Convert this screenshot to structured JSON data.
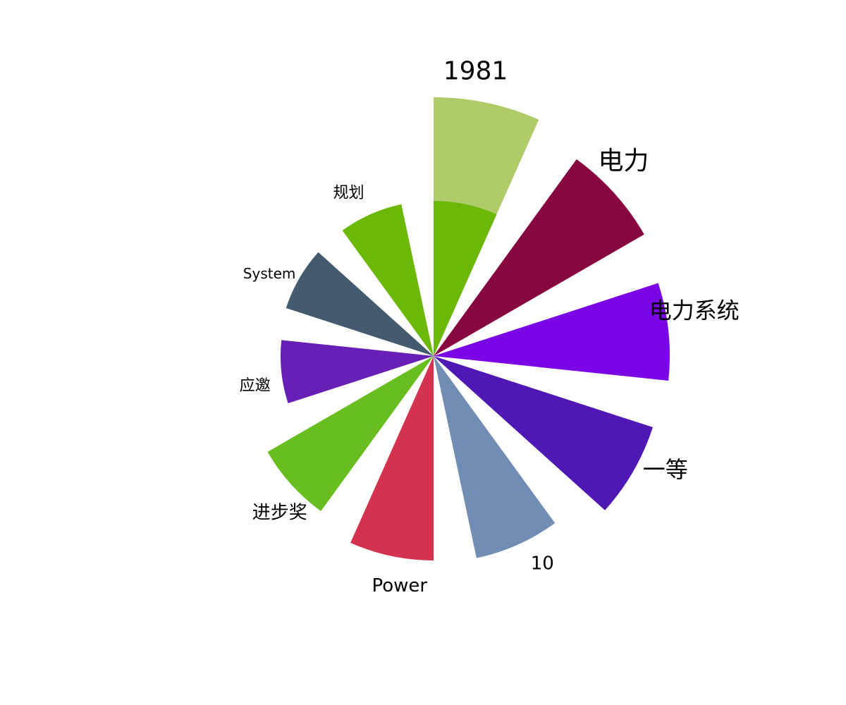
{
  "chart_data": {
    "type": "nightingale-rose",
    "title": "",
    "slices": [
      {
        "label": "1981",
        "value": 367,
        "color": "#b0cb69",
        "label_size": 36
      },
      {
        "label": "电力",
        "value": 345,
        "color": "#880640",
        "label_size": 36
      },
      {
        "label": "电力系统",
        "value": 335,
        "color": "#7a06e6",
        "label_size": 32
      },
      {
        "label": "一等",
        "value": 327,
        "color": "#4f18b5",
        "label_size": 32
      },
      {
        "label": "10",
        "value": 293,
        "color": "#728db3",
        "label_size": 26
      },
      {
        "label": "Power",
        "value": 290,
        "color": "#d3334f",
        "label_size": 26
      },
      {
        "label": "进步奖",
        "value": 272,
        "color": "#69be1f",
        "label_size": 26
      },
      {
        "label": "应邀",
        "value": 217,
        "color": "#681fb6",
        "label_size": 22
      },
      {
        "label": "System",
        "value": 220,
        "color": "#435a6f",
        "label_size": 20
      },
      {
        "label": "规划",
        "value": 220,
        "color": "#6bb808",
        "label_size": 22
      }
    ],
    "radial_range": [
      0,
      367
    ],
    "legend": "none",
    "grid": false
  }
}
